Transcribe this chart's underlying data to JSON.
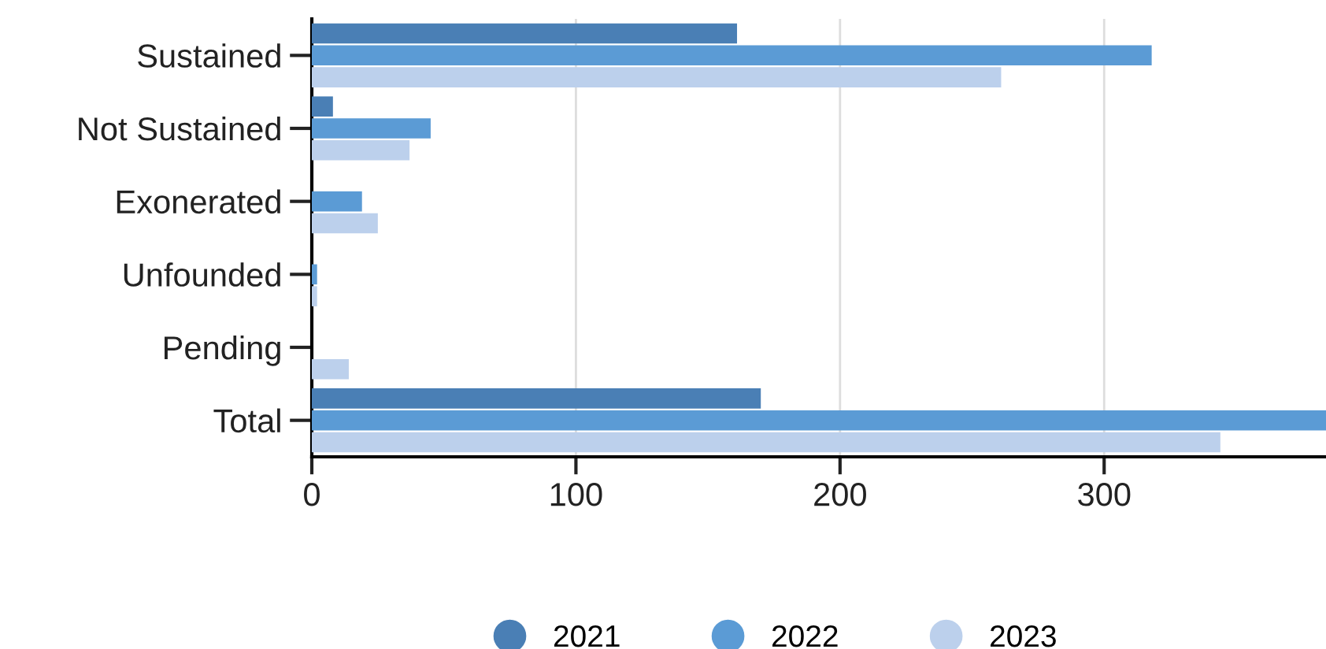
{
  "chart_data": {
    "type": "bar",
    "orientation": "horizontal",
    "categories": [
      "Sustained",
      "Not Sustained",
      "Exonerated",
      "Unfounded",
      "Pending",
      "Total"
    ],
    "series": [
      {
        "name": "2021",
        "color": "#4a7fb5",
        "values": [
          161,
          8,
          0,
          0,
          0,
          170
        ]
      },
      {
        "name": "2022",
        "color": "#5b9bd5",
        "values": [
          318,
          45,
          19,
          2,
          0,
          384
        ]
      },
      {
        "name": "2023",
        "color": "#bcd0ec",
        "values": [
          261,
          37,
          25,
          2,
          14,
          344
        ]
      }
    ],
    "xlim": [
      0,
      384
    ],
    "xticks": [
      0,
      100,
      200,
      300
    ],
    "grid": "x",
    "legend": "bottom"
  }
}
